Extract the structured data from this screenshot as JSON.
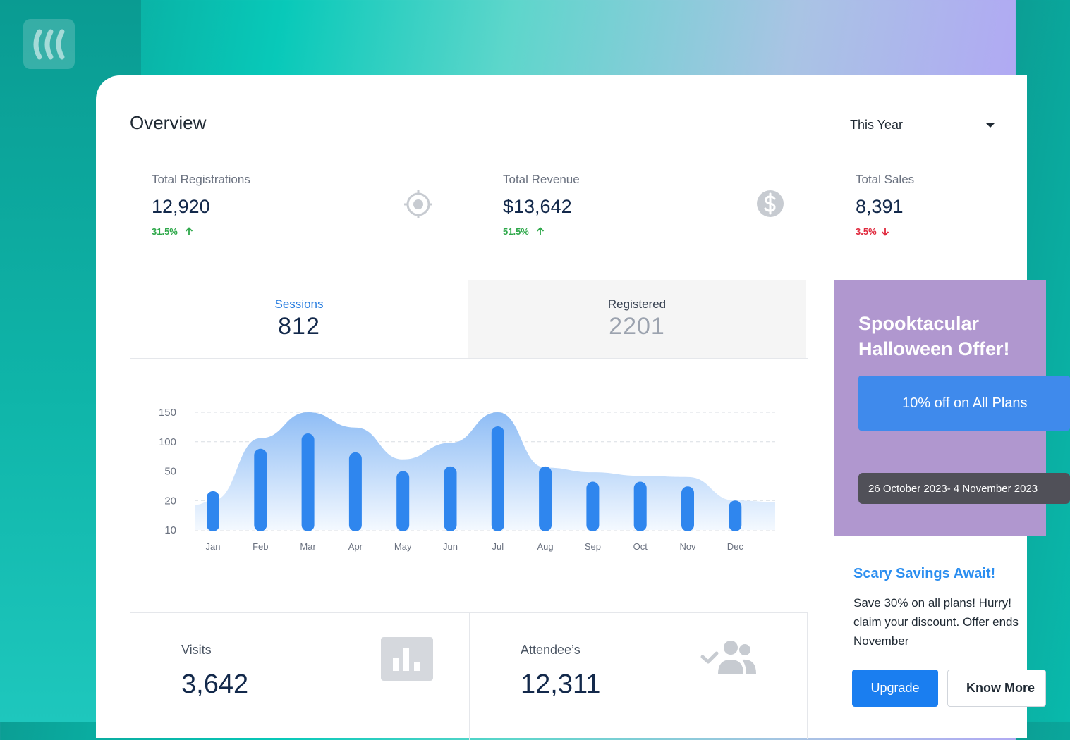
{
  "header": {
    "title": "Overview",
    "period_selected": "This Year"
  },
  "stats": [
    {
      "label": "Total Registrations",
      "value": "12,920",
      "change": "31.5%",
      "direction": "up",
      "icon": "target-icon"
    },
    {
      "label": "Total Revenue",
      "value": "$13,642",
      "change": "51.5%",
      "direction": "up",
      "icon": "dollar-icon"
    },
    {
      "label": "Total Sales",
      "value": "8,391",
      "change": "3.5%",
      "direction": "down"
    }
  ],
  "tabs": {
    "sessions": {
      "label": "Sessions",
      "value": "812"
    },
    "registered": {
      "label": "Registered",
      "value": "2201"
    }
  },
  "chart_data": {
    "type": "bar",
    "categories": [
      "Jan",
      "Feb",
      "Mar",
      "Apr",
      "May",
      "Jun",
      "Jul",
      "Aug",
      "Sep",
      "Oct",
      "Nov",
      "Dec"
    ],
    "y_tick_labels": [
      "150",
      "100",
      "50",
      "20",
      "10"
    ],
    "bar_levels": [
      0.33,
      0.69,
      0.82,
      0.66,
      0.5,
      0.54,
      0.88,
      0.54,
      0.41,
      0.41,
      0.37,
      0.25
    ],
    "area_levels": [
      0.25,
      0.78,
      1.0,
      0.87,
      0.6,
      0.74,
      1.0,
      0.53,
      0.49,
      0.46,
      0.45,
      0.25
    ],
    "grid": true,
    "colors": {
      "bar": "#2f86ee",
      "area_top": "#8fbdf5",
      "area_bottom": "#f4f9ff",
      "grid": "#d9dde3"
    }
  },
  "metrics": [
    {
      "label": "Visits",
      "value": "3,642",
      "icon": "bar-chart-icon"
    },
    {
      "label": "Attendee’s",
      "value": "12,311",
      "icon": "users-check-icon"
    }
  ],
  "promo": {
    "title": "Spooktacular Halloween Offer!",
    "button_label": "10% off on All Plans",
    "dates": "26 October 2023- 4 November 2023",
    "background": "#b097cf"
  },
  "savings": {
    "title": "Scary Savings Await!",
    "text": "Save 30% on all plans! Hurry!\nclaim your discount. Offer ends\nNovember",
    "upgrade_label": "Upgrade",
    "know_more_label": "Know More"
  }
}
